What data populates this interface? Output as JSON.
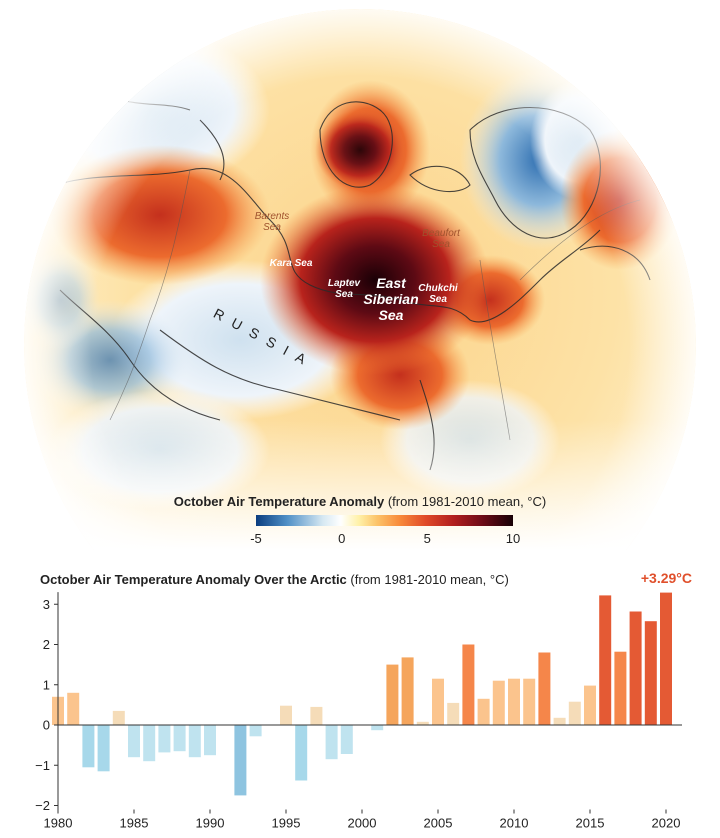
{
  "map": {
    "labels": {
      "barents": "Barents\nSea",
      "kara": "Kara Sea",
      "laptev": "Laptev\nSea",
      "east_siberian": "East\nSiberian\nSea",
      "chukchi": "Chukchi\nSea",
      "beaufort": "Beaufort\nSea",
      "russia": "RUSSIA"
    },
    "scale": {
      "title_bold": "October Air Temperature Anomaly",
      "title_rest": "(from 1981-2010 mean, °C)",
      "ticks": [
        "-5",
        "0",
        "5",
        "10"
      ],
      "range": [
        -5,
        10
      ]
    }
  },
  "chart_data": {
    "type": "bar",
    "title": "October Air Temperature Anomaly Over the Arctic",
    "subtitle": "(from 1981-2010 mean, °C)",
    "callout": "+3.29°C",
    "ylim": [
      -2.1,
      3.3
    ],
    "yticks": [
      3,
      2,
      1,
      0,
      -1,
      -2
    ],
    "ytick_labels": [
      "3",
      "2",
      "1",
      "0",
      "−1",
      "−2"
    ],
    "xticks": [
      1980,
      1985,
      1990,
      1995,
      2000,
      2005,
      2010,
      2015,
      2020
    ],
    "x": [
      1980,
      1981,
      1982,
      1983,
      1984,
      1985,
      1986,
      1987,
      1988,
      1989,
      1990,
      1991,
      1992,
      1993,
      1994,
      1995,
      1996,
      1997,
      1998,
      1999,
      2000,
      2001,
      2002,
      2003,
      2004,
      2005,
      2006,
      2007,
      2008,
      2009,
      2010,
      2011,
      2012,
      2013,
      2014,
      2015,
      2016,
      2017,
      2018,
      2019,
      2020
    ],
    "values": [
      0.7,
      0.8,
      -1.05,
      -1.15,
      0.35,
      -0.8,
      -0.9,
      -0.68,
      -0.65,
      -0.8,
      -0.75,
      0,
      -1.75,
      -0.28,
      0,
      0.48,
      -1.38,
      0.45,
      -0.85,
      -0.72,
      0,
      -0.13,
      1.5,
      1.68,
      0.08,
      1.15,
      0.55,
      2.0,
      0.65,
      1.1,
      1.15,
      1.15,
      1.8,
      0.18,
      0.58,
      0.98,
      3.22,
      1.82,
      2.82,
      2.58,
      3.29
    ],
    "colors": {
      "neg_light": "#bfe3ef",
      "neg_mid": "#a7d8ea",
      "neg_dark": "#8ec4e0",
      "pos_pale": "#f5dcb8",
      "pos_light": "#fbc48d",
      "pos_mid": "#f5a55c",
      "pos_strong": "#f5864a",
      "pos_max": "#e45a34",
      "callout": "#e0502c"
    }
  }
}
